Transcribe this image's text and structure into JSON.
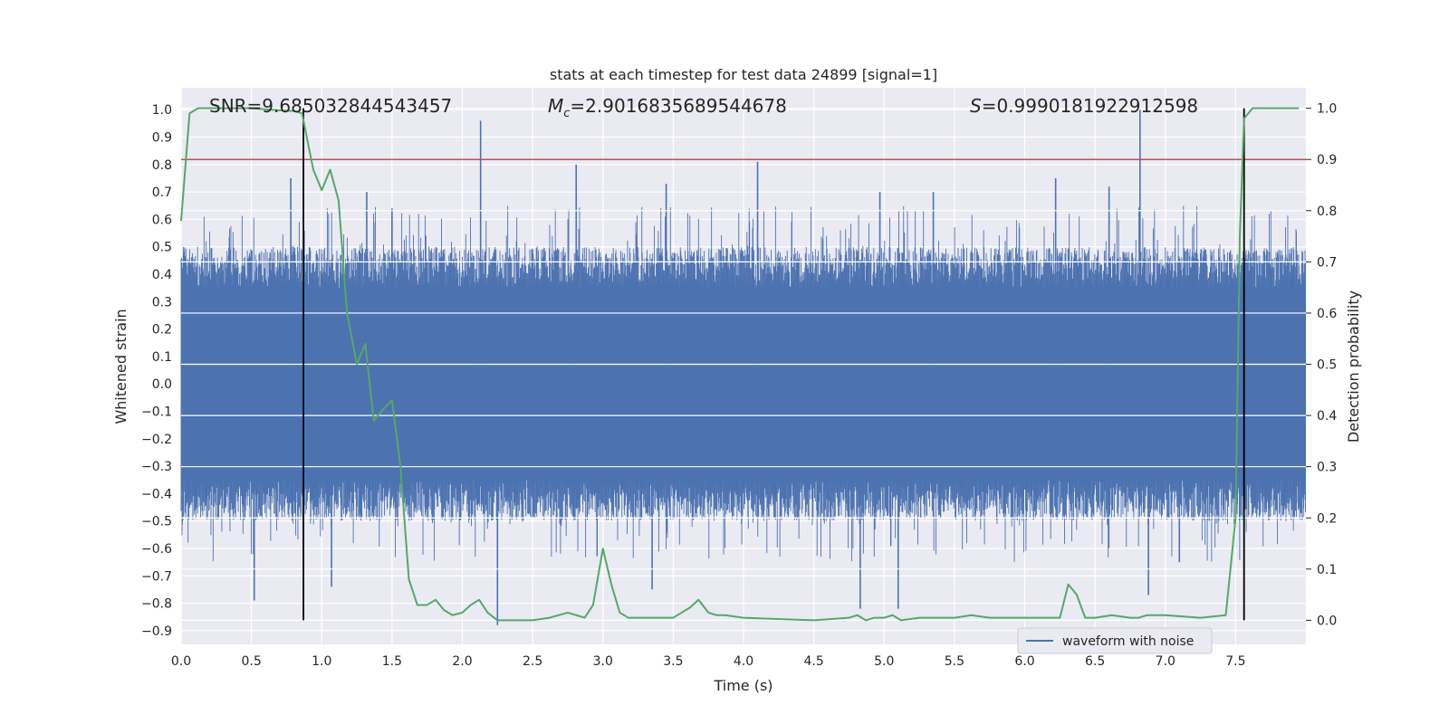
{
  "chart_data": {
    "type": "line",
    "title": "stats at each timestep for test data 24899 [signal=1]",
    "xlabel": "Time (s)",
    "ylabel": "Whitened strain",
    "y2label": "Detection probability",
    "xlim": [
      0.0,
      8.0
    ],
    "ylim": [
      -0.95,
      1.08
    ],
    "y2lim": [
      -0.047,
      1.04
    ],
    "xticks": [
      "0.0",
      "0.5",
      "1.0",
      "1.5",
      "2.0",
      "2.5",
      "3.0",
      "3.5",
      "4.0",
      "4.5",
      "5.0",
      "5.5",
      "6.0",
      "6.5",
      "7.0",
      "7.5"
    ],
    "xtick_values": [
      0.0,
      0.5,
      1.0,
      1.5,
      2.0,
      2.5,
      3.0,
      3.5,
      4.0,
      4.5,
      5.0,
      5.5,
      6.0,
      6.5,
      7.0,
      7.5
    ],
    "yticks": [
      "1.0",
      "0.9",
      "0.8",
      "0.7",
      "0.6",
      "0.5",
      "0.4",
      "0.3",
      "0.2",
      "0.1",
      "0.0",
      "−0.1",
      "−0.2",
      "−0.3",
      "−0.4",
      "−0.5",
      "−0.6",
      "−0.7",
      "−0.8",
      "−0.9"
    ],
    "ytick_values": [
      1.0,
      0.9,
      0.8,
      0.7,
      0.6,
      0.5,
      0.4,
      0.3,
      0.2,
      0.1,
      0.0,
      -0.1,
      -0.2,
      -0.3,
      -0.4,
      -0.5,
      -0.6,
      -0.7,
      -0.8,
      -0.9
    ],
    "y2ticks": [
      "1.0",
      "0.9",
      "0.8",
      "0.7",
      "0.6",
      "0.5",
      "0.4",
      "0.3",
      "0.2",
      "0.1",
      "0.0"
    ],
    "y2tick_values": [
      1.0,
      0.9,
      0.8,
      0.7,
      0.6,
      0.5,
      0.4,
      0.3,
      0.2,
      0.1,
      0.0
    ],
    "annotations": {
      "snr": "SNR=9.685032844543457",
      "mc_symbol": "M",
      "mc_sub": "c",
      "mc_value": "=2.9016835689544678",
      "s_symbol": "S",
      "s_value": "=0.9990181922912598"
    },
    "legend": {
      "label": "waveform with noise",
      "placement": "bottom-right"
    },
    "threshold": {
      "value_right_axis": 0.9,
      "color": "#c44e52"
    },
    "vertical_markers": [
      0.87,
      7.56
    ],
    "waveform": {
      "name": "waveform with noise",
      "color": "#4c72b0",
      "core_amplitude": 0.3,
      "typical_max": 0.45,
      "typical_min": -0.45,
      "spikes": [
        {
          "t": 0.78,
          "v": 0.75
        },
        {
          "t": 1.32,
          "v": 0.7
        },
        {
          "t": 1.5,
          "v": 0.64
        },
        {
          "t": 2.13,
          "v": 0.96
        },
        {
          "t": 2.81,
          "v": 0.8
        },
        {
          "t": 3.45,
          "v": 0.73
        },
        {
          "t": 4.1,
          "v": 0.81
        },
        {
          "t": 4.97,
          "v": 0.7
        },
        {
          "t": 5.35,
          "v": 0.7
        },
        {
          "t": 6.22,
          "v": 0.75
        },
        {
          "t": 6.82,
          "v": 1.0
        },
        {
          "t": 6.6,
          "v": 0.72
        },
        {
          "t": 0.52,
          "v": -0.79
        },
        {
          "t": 1.07,
          "v": -0.74
        },
        {
          "t": 2.25,
          "v": -0.88
        },
        {
          "t": 3.35,
          "v": -0.75
        },
        {
          "t": 4.83,
          "v": -0.82
        },
        {
          "t": 5.1,
          "v": -0.82
        },
        {
          "t": 6.88,
          "v": -0.77
        },
        {
          "t": 0.87,
          "v": -0.62
        },
        {
          "t": 7.1,
          "v": -0.65
        }
      ]
    },
    "detection_probability": {
      "name": "detection probability",
      "color": "#55a868",
      "axis": "right",
      "x": [
        0.0,
        0.06,
        0.12,
        0.25,
        0.5,
        0.75,
        0.8,
        0.86,
        0.94,
        1.0,
        1.06,
        1.12,
        1.18,
        1.25,
        1.31,
        1.37,
        1.43,
        1.5,
        1.56,
        1.62,
        1.68,
        1.75,
        1.81,
        1.87,
        1.93,
        2.0,
        2.06,
        2.12,
        2.18,
        2.25,
        2.5,
        2.62,
        2.75,
        2.81,
        2.87,
        2.93,
        3.0,
        3.06,
        3.12,
        3.18,
        3.25,
        3.5,
        3.62,
        3.68,
        3.75,
        3.81,
        3.87,
        4.0,
        4.5,
        4.75,
        4.81,
        4.87,
        4.93,
        5.0,
        5.06,
        5.12,
        5.25,
        5.5,
        5.62,
        5.75,
        6.0,
        6.25,
        6.31,
        6.37,
        6.43,
        6.5,
        6.62,
        6.75,
        6.81,
        6.87,
        7.0,
        7.25,
        7.43,
        7.5,
        7.53,
        7.56,
        7.62,
        7.68,
        7.75,
        7.87,
        7.95
      ],
      "y": [
        0.78,
        0.99,
        1.0,
        1.0,
        1.0,
        0.995,
        0.995,
        0.99,
        0.88,
        0.84,
        0.88,
        0.82,
        0.6,
        0.5,
        0.54,
        0.39,
        0.41,
        0.43,
        0.3,
        0.08,
        0.03,
        0.03,
        0.04,
        0.02,
        0.01,
        0.015,
        0.03,
        0.04,
        0.015,
        0.0,
        0.0,
        0.005,
        0.015,
        0.01,
        0.005,
        0.03,
        0.14,
        0.07,
        0.015,
        0.005,
        0.005,
        0.005,
        0.025,
        0.04,
        0.015,
        0.01,
        0.01,
        0.005,
        0.0,
        0.005,
        0.01,
        0.0,
        0.005,
        0.005,
        0.01,
        0.0,
        0.005,
        0.005,
        0.01,
        0.005,
        0.005,
        0.005,
        0.07,
        0.05,
        0.005,
        0.005,
        0.01,
        0.005,
        0.005,
        0.01,
        0.01,
        0.005,
        0.01,
        0.2,
        0.75,
        0.98,
        1.0,
        1.0,
        1.0,
        1.0,
        1.0
      ]
    }
  }
}
